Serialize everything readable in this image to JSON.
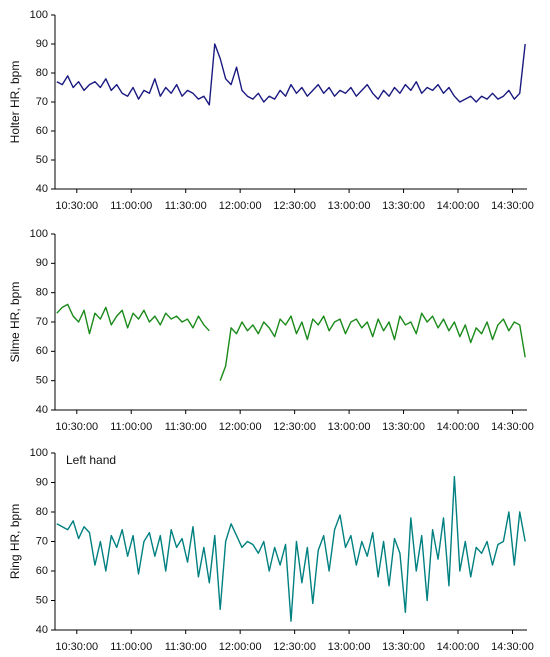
{
  "chart_data": [
    {
      "type": "line",
      "ylabel": "Holter HR, bpm",
      "x": [
        "10:19:00",
        "10:22:00",
        "10:25:00",
        "10:28:00",
        "10:31:00",
        "10:34:00",
        "10:37:00",
        "10:40:00",
        "10:43:00",
        "10:46:00",
        "10:49:00",
        "10:52:00",
        "10:55:00",
        "10:58:00",
        "11:01:00",
        "11:04:00",
        "11:07:00",
        "11:10:00",
        "11:13:00",
        "11:16:00",
        "11:19:00",
        "11:22:00",
        "11:25:00",
        "11:28:00",
        "11:31:00",
        "11:34:00",
        "11:37:00",
        "11:40:00",
        "11:43:00",
        "11:46:00",
        "11:49:00",
        "11:52:00",
        "11:55:00",
        "11:58:00",
        "12:01:00",
        "12:04:00",
        "12:07:00",
        "12:10:00",
        "12:13:00",
        "12:16:00",
        "12:19:00",
        "12:22:00",
        "12:25:00",
        "12:28:00",
        "12:31:00",
        "12:34:00",
        "12:37:00",
        "12:40:00",
        "12:43:00",
        "12:46:00",
        "12:49:00",
        "12:52:00",
        "12:55:00",
        "12:58:00",
        "13:01:00",
        "13:04:00",
        "13:07:00",
        "13:10:00",
        "13:13:00",
        "13:16:00",
        "13:19:00",
        "13:22:00",
        "13:25:00",
        "13:28:00",
        "13:31:00",
        "13:34:00",
        "13:37:00",
        "13:40:00",
        "13:43:00",
        "13:46:00",
        "13:49:00",
        "13:52:00",
        "13:55:00",
        "13:58:00",
        "14:01:00",
        "14:04:00",
        "14:07:00",
        "14:10:00",
        "14:13:00",
        "14:16:00",
        "14:19:00",
        "14:22:00",
        "14:25:00",
        "14:28:00",
        "14:31:00",
        "14:34:00",
        "14:37:00"
      ],
      "series": [
        {
          "color": "#1a1a80",
          "values": [
            77,
            76,
            79,
            75,
            77,
            74,
            76,
            77,
            75,
            78,
            74,
            76,
            73,
            72,
            75,
            71,
            74,
            73,
            78,
            72,
            75,
            73,
            76,
            72,
            74,
            73,
            71,
            72,
            69,
            90,
            85,
            78,
            76,
            82,
            74,
            72,
            71,
            73,
            70,
            72,
            71,
            74,
            72,
            76,
            73,
            75,
            72,
            74,
            76,
            73,
            75,
            72,
            74,
            73,
            75,
            72,
            74,
            76,
            73,
            71,
            74,
            72,
            75,
            73,
            76,
            74,
            77,
            73,
            75,
            74,
            76,
            73,
            75,
            72,
            70,
            71,
            72,
            70,
            72,
            71,
            73,
            71,
            72,
            74,
            71,
            73,
            90
          ]
        }
      ],
      "xlim": [
        "10:18:00",
        "14:38:00"
      ],
      "xticks": [
        "10:30:00",
        "11:00:00",
        "11:30:00",
        "12:00:00",
        "12:30:00",
        "13:00:00",
        "13:30:00",
        "14:00:00",
        "14:30:00"
      ],
      "ylim": [
        40,
        100
      ],
      "yticks": [
        40,
        50,
        60,
        70,
        80,
        90,
        100
      ]
    },
    {
      "type": "line",
      "ylabel": "Silme HR, bpm",
      "x": [
        "10:19:00",
        "10:22:00",
        "10:25:00",
        "10:28:00",
        "10:31:00",
        "10:34:00",
        "10:37:00",
        "10:40:00",
        "10:43:00",
        "10:46:00",
        "10:49:00",
        "10:52:00",
        "10:55:00",
        "10:58:00",
        "11:01:00",
        "11:04:00",
        "11:07:00",
        "11:10:00",
        "11:13:00",
        "11:16:00",
        "11:19:00",
        "11:22:00",
        "11:25:00",
        "11:28:00",
        "11:31:00",
        "11:34:00",
        "11:37:00",
        "11:40:00",
        "11:43:00",
        "11:46:00",
        "11:49:00",
        "11:52:00",
        "11:55:00",
        "11:58:00",
        "12:01:00",
        "12:04:00",
        "12:07:00",
        "12:10:00",
        "12:13:00",
        "12:16:00",
        "12:19:00",
        "12:22:00",
        "12:25:00",
        "12:28:00",
        "12:31:00",
        "12:34:00",
        "12:37:00",
        "12:40:00",
        "12:43:00",
        "12:46:00",
        "12:49:00",
        "12:52:00",
        "12:55:00",
        "12:58:00",
        "13:01:00",
        "13:04:00",
        "13:07:00",
        "13:10:00",
        "13:13:00",
        "13:16:00",
        "13:19:00",
        "13:22:00",
        "13:25:00",
        "13:28:00",
        "13:31:00",
        "13:34:00",
        "13:37:00",
        "13:40:00",
        "13:43:00",
        "13:46:00",
        "13:49:00",
        "13:52:00",
        "13:55:00",
        "13:58:00",
        "14:01:00",
        "14:04:00",
        "14:07:00",
        "14:10:00",
        "14:13:00",
        "14:16:00",
        "14:19:00",
        "14:22:00",
        "14:25:00",
        "14:28:00",
        "14:31:00",
        "14:34:00",
        "14:37:00"
      ],
      "series": [
        {
          "color": "#1a8a1a",
          "values": [
            73,
            75,
            76,
            72,
            70,
            74,
            66,
            73,
            71,
            75,
            69,
            72,
            74,
            68,
            73,
            71,
            74,
            70,
            72,
            69,
            73,
            71,
            72,
            70,
            71,
            68,
            72,
            69,
            67,
            null,
            50,
            55,
            68,
            66,
            70,
            67,
            69,
            66,
            70,
            68,
            65,
            71,
            69,
            72,
            66,
            70,
            64,
            71,
            69,
            72,
            67,
            70,
            71,
            66,
            70,
            71,
            68,
            70,
            65,
            71,
            67,
            70,
            64,
            72,
            69,
            70,
            66,
            73,
            70,
            72,
            68,
            71,
            67,
            70,
            65,
            69,
            63,
            68,
            66,
            70,
            64,
            69,
            71,
            67,
            70,
            69,
            58
          ]
        }
      ],
      "xlim": [
        "10:18:00",
        "14:38:00"
      ],
      "xticks": [
        "10:30:00",
        "11:00:00",
        "11:30:00",
        "12:00:00",
        "12:30:00",
        "13:00:00",
        "13:30:00",
        "14:00:00",
        "14:30:00"
      ],
      "ylim": [
        40,
        100
      ],
      "yticks": [
        40,
        50,
        60,
        70,
        80,
        90,
        100
      ]
    },
    {
      "type": "line",
      "ylabel": "Ring HR, bpm",
      "annotation": "Left hand",
      "x": [
        "10:19:00",
        "10:22:00",
        "10:25:00",
        "10:28:00",
        "10:31:00",
        "10:34:00",
        "10:37:00",
        "10:40:00",
        "10:43:00",
        "10:46:00",
        "10:49:00",
        "10:52:00",
        "10:55:00",
        "10:58:00",
        "11:01:00",
        "11:04:00",
        "11:07:00",
        "11:10:00",
        "11:13:00",
        "11:16:00",
        "11:19:00",
        "11:22:00",
        "11:25:00",
        "11:28:00",
        "11:31:00",
        "11:34:00",
        "11:37:00",
        "11:40:00",
        "11:43:00",
        "11:46:00",
        "11:49:00",
        "11:52:00",
        "11:55:00",
        "11:58:00",
        "12:01:00",
        "12:04:00",
        "12:07:00",
        "12:10:00",
        "12:13:00",
        "12:16:00",
        "12:19:00",
        "12:22:00",
        "12:25:00",
        "12:28:00",
        "12:31:00",
        "12:34:00",
        "12:37:00",
        "12:40:00",
        "12:43:00",
        "12:46:00",
        "12:49:00",
        "12:52:00",
        "12:55:00",
        "12:58:00",
        "13:01:00",
        "13:04:00",
        "13:07:00",
        "13:10:00",
        "13:13:00",
        "13:16:00",
        "13:19:00",
        "13:22:00",
        "13:25:00",
        "13:28:00",
        "13:31:00",
        "13:34:00",
        "13:37:00",
        "13:40:00",
        "13:43:00",
        "13:46:00",
        "13:49:00",
        "13:52:00",
        "13:55:00",
        "13:58:00",
        "14:01:00",
        "14:04:00",
        "14:07:00",
        "14:10:00",
        "14:13:00",
        "14:16:00",
        "14:19:00",
        "14:22:00",
        "14:25:00",
        "14:28:00",
        "14:31:00",
        "14:34:00",
        "14:37:00"
      ],
      "series": [
        {
          "color": "#008080",
          "values": [
            76,
            75,
            74,
            77,
            71,
            75,
            73,
            62,
            70,
            60,
            72,
            68,
            74,
            65,
            72,
            59,
            70,
            73,
            65,
            72,
            60,
            74,
            68,
            71,
            63,
            75,
            58,
            68,
            56,
            72,
            47,
            70,
            76,
            72,
            68,
            70,
            69,
            66,
            70,
            60,
            68,
            62,
            69,
            43,
            70,
            56,
            68,
            49,
            67,
            72,
            60,
            74,
            79,
            68,
            72,
            62,
            70,
            65,
            73,
            58,
            70,
            55,
            71,
            66,
            46,
            78,
            60,
            72,
            50,
            74,
            64,
            78,
            55,
            92,
            60,
            70,
            58,
            68,
            66,
            70,
            62,
            69,
            70,
            80,
            62,
            80,
            70
          ]
        }
      ],
      "xlim": [
        "10:18:00",
        "14:38:00"
      ],
      "xticks": [
        "10:30:00",
        "11:00:00",
        "11:30:00",
        "12:00:00",
        "12:30:00",
        "13:00:00",
        "13:30:00",
        "14:00:00",
        "14:30:00"
      ],
      "ylim": [
        40,
        100
      ],
      "yticks": [
        40,
        50,
        60,
        70,
        80,
        90,
        100
      ]
    }
  ]
}
